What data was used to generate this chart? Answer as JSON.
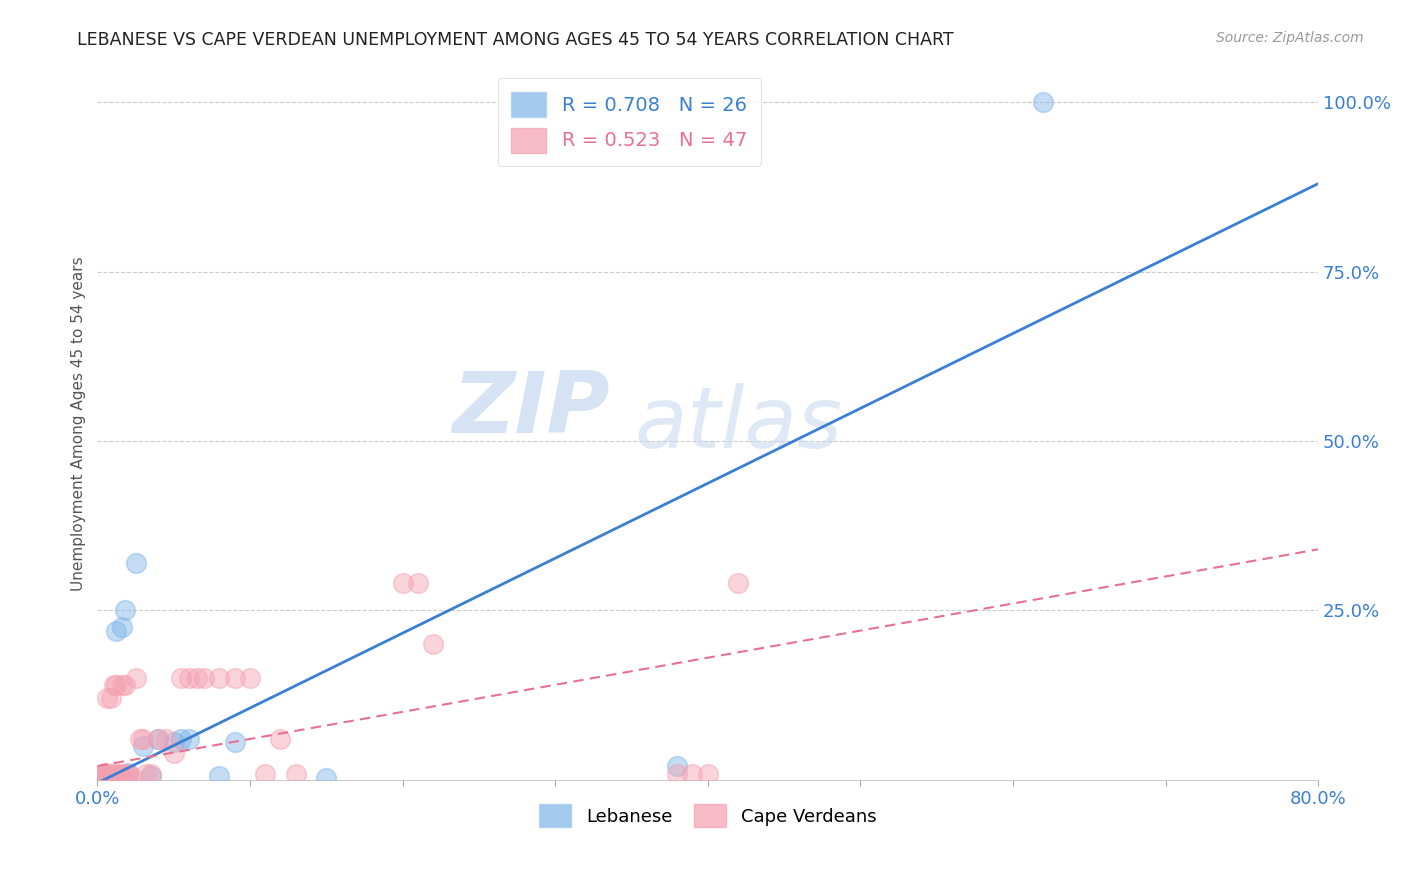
{
  "title": "LEBANESE VS CAPE VERDEAN UNEMPLOYMENT AMONG AGES 45 TO 54 YEARS CORRELATION CHART",
  "source": "Source: ZipAtlas.com",
  "ylabel": "Unemployment Among Ages 45 to 54 years",
  "xlabel": "",
  "xlim": [
    0.0,
    0.8
  ],
  "ylim": [
    0.0,
    1.05
  ],
  "xticks": [
    0.0,
    0.1,
    0.2,
    0.3,
    0.4,
    0.5,
    0.6,
    0.7,
    0.8
  ],
  "xticklabels": [
    "0.0%",
    "",
    "",
    "",
    "",
    "",
    "",
    "",
    "80.0%"
  ],
  "yticks_right": [
    0.25,
    0.5,
    0.75,
    1.0
  ],
  "yticklabels_right": [
    "25.0%",
    "50.0%",
    "75.0%",
    "100.0%"
  ],
  "background_color": "#ffffff",
  "watermark_zip": "ZIP",
  "watermark_atlas": "atlas",
  "lebanese_color": "#7eb3e8",
  "capeverdean_color": "#f4a0b0",
  "lebanese_line_color": "#3a7fd4",
  "capeverdean_line_color": "#e87090",
  "lebanese_R": 0.708,
  "lebanese_N": 26,
  "capeverdean_R": 0.523,
  "capeverdean_N": 47,
  "legend_lebanese": "Lebanese",
  "legend_capeverdean": "Cape Verdeans",
  "leb_line_x0": 0.0,
  "leb_line_y0": -0.005,
  "leb_line_x1": 0.8,
  "leb_line_y1": 0.88,
  "cv_line_x0": 0.0,
  "cv_line_y0": 0.02,
  "cv_line_x1": 0.8,
  "cv_line_y1": 0.34,
  "lebanese_x": [
    0.001,
    0.002,
    0.003,
    0.004,
    0.005,
    0.006,
    0.007,
    0.008,
    0.01,
    0.012,
    0.014,
    0.016,
    0.018,
    0.02,
    0.025,
    0.03,
    0.035,
    0.04,
    0.05,
    0.055,
    0.06,
    0.08,
    0.09,
    0.15,
    0.38,
    0.62
  ],
  "lebanese_y": [
    0.003,
    0.004,
    0.005,
    0.003,
    0.005,
    0.004,
    0.005,
    0.003,
    0.005,
    0.22,
    0.005,
    0.225,
    0.25,
    0.01,
    0.32,
    0.05,
    0.005,
    0.06,
    0.055,
    0.06,
    0.06,
    0.005,
    0.055,
    0.003,
    0.02,
    1.0
  ],
  "capeverdean_x": [
    0.001,
    0.002,
    0.003,
    0.004,
    0.005,
    0.005,
    0.006,
    0.007,
    0.008,
    0.009,
    0.01,
    0.011,
    0.012,
    0.013,
    0.014,
    0.015,
    0.016,
    0.017,
    0.018,
    0.019,
    0.02,
    0.022,
    0.025,
    0.028,
    0.03,
    0.032,
    0.035,
    0.04,
    0.045,
    0.05,
    0.055,
    0.06,
    0.065,
    0.07,
    0.08,
    0.09,
    0.1,
    0.11,
    0.12,
    0.13,
    0.2,
    0.21,
    0.22,
    0.38,
    0.39,
    0.4,
    0.42
  ],
  "capeverdean_y": [
    0.003,
    0.005,
    0.004,
    0.006,
    0.008,
    0.01,
    0.12,
    0.008,
    0.008,
    0.12,
    0.008,
    0.14,
    0.14,
    0.008,
    0.006,
    0.008,
    0.14,
    0.008,
    0.14,
    0.008,
    0.008,
    0.006,
    0.15,
    0.06,
    0.06,
    0.008,
    0.008,
    0.06,
    0.06,
    0.04,
    0.15,
    0.15,
    0.15,
    0.15,
    0.15,
    0.15,
    0.15,
    0.008,
    0.06,
    0.008,
    0.29,
    0.29,
    0.2,
    0.008,
    0.008,
    0.008,
    0.29
  ]
}
